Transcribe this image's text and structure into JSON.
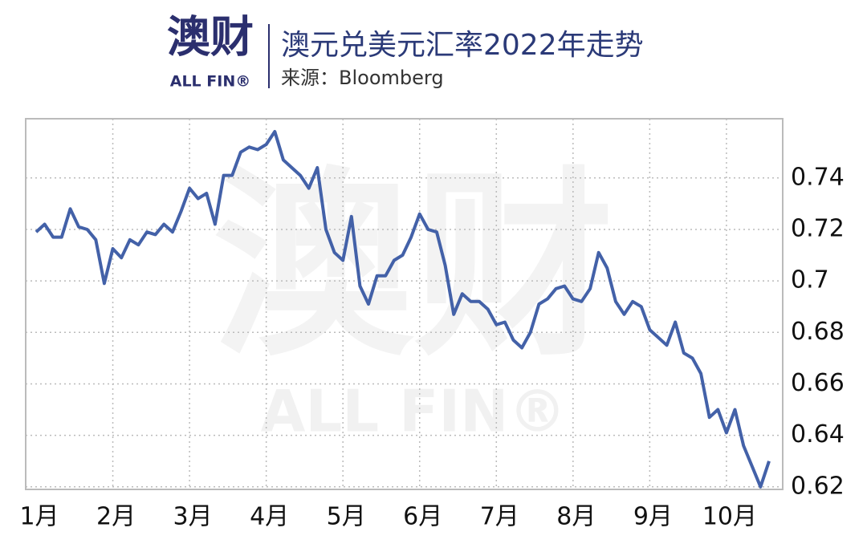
{
  "logo": {
    "name": "澳财",
    "sub": "ALL FIN®"
  },
  "chart_data": {
    "type": "line",
    "title": "澳元兑美元汇率2022年走势",
    "subtitle": "来源：Bloomberg",
    "categories": [
      "1月",
      null,
      null,
      null,
      null,
      null,
      null,
      null,
      null,
      "2月",
      null,
      null,
      null,
      null,
      null,
      null,
      null,
      null,
      "3月",
      null,
      null,
      null,
      null,
      null,
      null,
      null,
      null,
      "4月",
      null,
      null,
      null,
      null,
      null,
      null,
      null,
      null,
      "5月",
      null,
      null,
      null,
      null,
      null,
      null,
      null,
      null,
      "6月",
      null,
      null,
      null,
      null,
      null,
      null,
      null,
      null,
      "7月",
      null,
      null,
      null,
      null,
      null,
      null,
      null,
      null,
      "8月",
      null,
      null,
      null,
      null,
      null,
      null,
      null,
      null,
      "9月",
      null,
      null,
      null,
      null,
      null,
      null,
      null,
      null,
      "10月",
      null,
      null,
      null,
      null,
      null
    ],
    "series": [
      {
        "name": "AUD/USD",
        "color": "#4361a8",
        "values": [
          0.719,
          0.722,
          0.717,
          0.717,
          0.728,
          0.721,
          0.72,
          0.716,
          0.699,
          0.7125,
          0.709,
          0.716,
          0.714,
          0.719,
          0.718,
          0.722,
          0.719,
          0.727,
          0.736,
          0.732,
          0.734,
          0.722,
          0.741,
          0.741,
          0.75,
          0.752,
          0.751,
          0.753,
          0.758,
          0.747,
          0.744,
          0.741,
          0.736,
          0.744,
          0.72,
          0.711,
          0.708,
          0.725,
          0.698,
          0.691,
          0.702,
          0.702,
          0.708,
          0.71,
          0.717,
          0.726,
          0.72,
          0.719,
          0.706,
          0.687,
          0.695,
          0.692,
          0.692,
          0.689,
          0.683,
          0.684,
          0.677,
          0.674,
          0.68,
          0.691,
          0.693,
          0.697,
          0.698,
          0.693,
          0.692,
          0.697,
          0.711,
          0.705,
          0.692,
          0.687,
          0.692,
          0.69,
          0.681,
          0.678,
          0.675,
          0.684,
          0.672,
          0.67,
          0.664,
          0.647,
          0.65,
          0.641,
          0.65,
          0.636,
          0.628,
          0.62,
          0.63
        ]
      }
    ],
    "ylim": [
      0.619,
      0.763
    ],
    "yticks": [
      0.62,
      0.64,
      0.66,
      0.68,
      0.7,
      0.72,
      0.74
    ],
    "grid": true
  }
}
